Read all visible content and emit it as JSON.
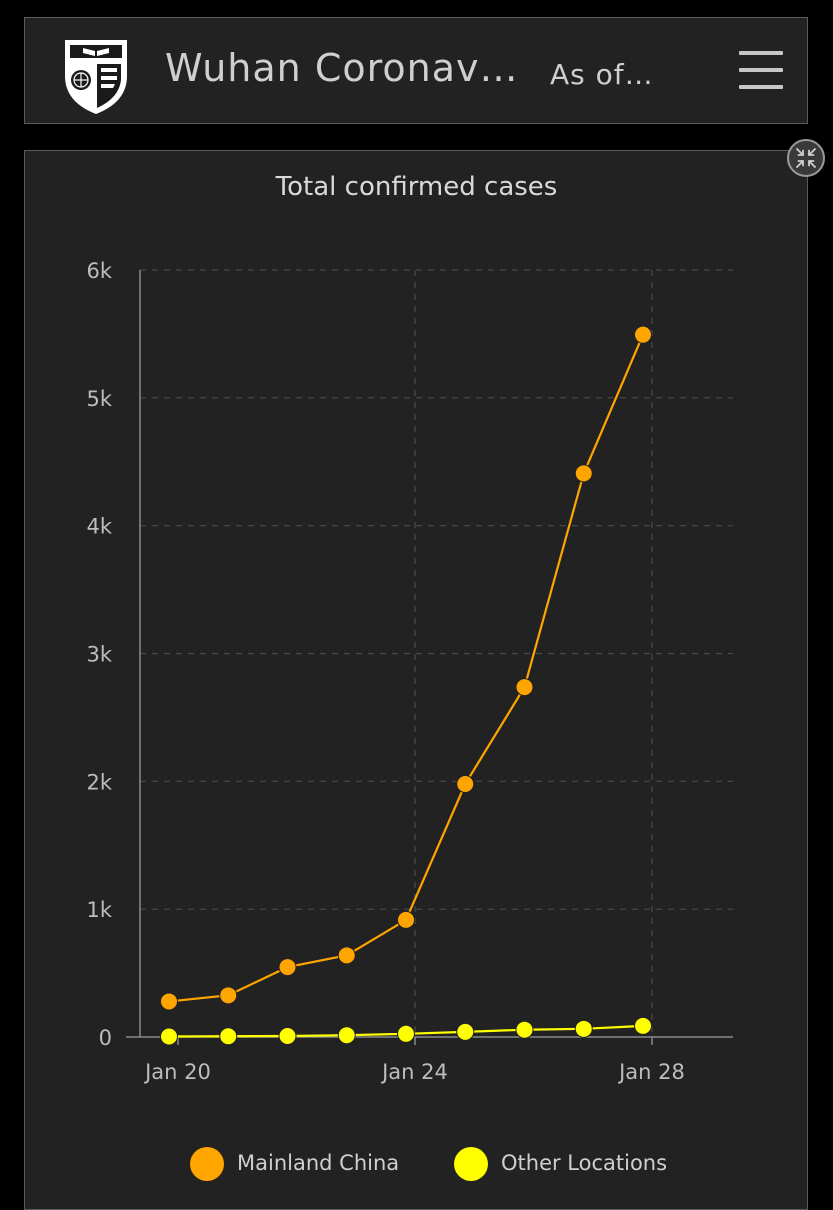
{
  "header": {
    "title": "Wuhan Coronav…",
    "subtitle": "As of…",
    "logo_icon": "university-shield-logo",
    "menu_icon": "hamburger-menu-icon"
  },
  "panel": {
    "collapse_icon": "collapse-arrows-icon"
  },
  "chart_data": {
    "type": "line",
    "title": "Total confirmed cases",
    "xlabel": "",
    "ylabel": "",
    "x": [
      "Jan 20",
      "Jan 21",
      "Jan 22",
      "Jan 23",
      "Jan 24",
      "Jan 25",
      "Jan 26",
      "Jan 27",
      "Jan 28"
    ],
    "series": [
      {
        "name": "Mainland China",
        "color": "#FFA500",
        "values": [
          278,
          326,
          547,
          639,
          916,
          1979,
          2737,
          4409,
          5494
        ]
      },
      {
        "name": "Other Locations",
        "color": "#FFFF00",
        "values": [
          4,
          6,
          8,
          14,
          25,
          40,
          57,
          64,
          87
        ]
      }
    ],
    "yticks": [
      0,
      1000,
      2000,
      3000,
      4000,
      5000,
      6000
    ],
    "ytick_labels": [
      "0",
      "1k",
      "2k",
      "3k",
      "4k",
      "5k",
      "6k"
    ],
    "xtick_labels": [
      "Jan 20",
      "Jan 24",
      "Jan 28"
    ],
    "ylim": [
      0,
      6000
    ],
    "grid": true,
    "legend": "bottom-center",
    "background": "#222222"
  }
}
